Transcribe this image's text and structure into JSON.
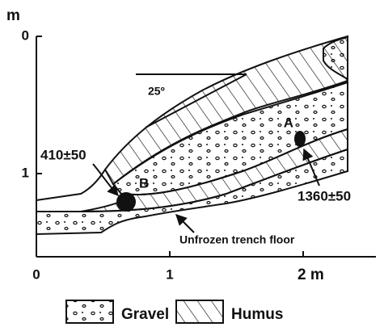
{
  "y_axis": {
    "unit": "m",
    "ticks": [
      "0",
      "1"
    ]
  },
  "x_axis": {
    "ticks": [
      "0",
      "1",
      "2 m"
    ]
  },
  "slope_angle": "25º",
  "samples": [
    {
      "label": "A",
      "date": "1360±50"
    },
    {
      "label": "B",
      "date": "410±50"
    }
  ],
  "floor_label": "Unfrozen trench floor",
  "legend": [
    {
      "label": "Gravel"
    },
    {
      "label": "Humus"
    }
  ]
}
